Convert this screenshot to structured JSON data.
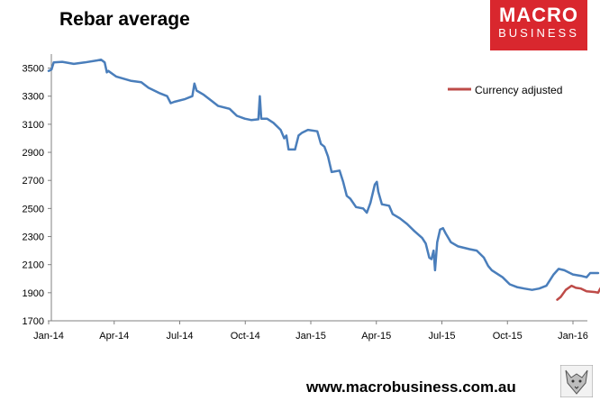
{
  "header": {
    "title": "Rebar average"
  },
  "logo": {
    "line1": "MACRO",
    "line2": "BUSINESS",
    "bg": "#d9272e"
  },
  "footer": {
    "url": "www.macrobusiness.com.au",
    "mascot_icon": "fox-logo-icon"
  },
  "colors": {
    "main": "#4a7ebb",
    "adjusted": "#be4b48",
    "axis": "#808080"
  },
  "chart_data": {
    "type": "line",
    "title": "Rebar average",
    "xlabel": "",
    "ylabel": "",
    "ylim": [
      1700,
      3600
    ],
    "yticks": [
      1700,
      1900,
      2100,
      2300,
      2500,
      2700,
      2900,
      3100,
      3300,
      3500
    ],
    "x_tick_labels": [
      "Jan-14",
      "Apr-14",
      "Jul-14",
      "Oct-14",
      "Jan-15",
      "Apr-15",
      "Jul-15",
      "Oct-15",
      "Jan-16"
    ],
    "grid": false,
    "legend": "top-right",
    "series": [
      {
        "name": "",
        "color": "#4a7ebb",
        "points": [
          [
            "2014-01-01",
            3480
          ],
          [
            "2014-01-05",
            3490
          ],
          [
            "2014-01-08",
            3540
          ],
          [
            "2014-01-20",
            3545
          ],
          [
            "2014-02-05",
            3530
          ],
          [
            "2014-02-20",
            3540
          ],
          [
            "2014-03-10",
            3555
          ],
          [
            "2014-03-15",
            3560
          ],
          [
            "2014-03-20",
            3540
          ],
          [
            "2014-03-23",
            3470
          ],
          [
            "2014-03-25",
            3480
          ],
          [
            "2014-04-05",
            3440
          ],
          [
            "2014-04-25",
            3410
          ],
          [
            "2014-05-10",
            3400
          ],
          [
            "2014-05-20",
            3360
          ],
          [
            "2014-06-05",
            3320
          ],
          [
            "2014-06-15",
            3300
          ],
          [
            "2014-06-20",
            3250
          ],
          [
            "2014-06-25",
            3260
          ],
          [
            "2014-07-10",
            3280
          ],
          [
            "2014-07-20",
            3300
          ],
          [
            "2014-07-23",
            3390
          ],
          [
            "2014-07-26",
            3340
          ],
          [
            "2014-08-05",
            3310
          ],
          [
            "2014-08-15",
            3270
          ],
          [
            "2014-08-25",
            3230
          ],
          [
            "2014-09-10",
            3210
          ],
          [
            "2014-09-20",
            3160
          ],
          [
            "2014-10-01",
            3140
          ],
          [
            "2014-10-10",
            3130
          ],
          [
            "2014-10-20",
            3135
          ],
          [
            "2014-10-22",
            3300
          ],
          [
            "2014-10-24",
            3140
          ],
          [
            "2014-11-01",
            3140
          ],
          [
            "2014-11-10",
            3110
          ],
          [
            "2014-11-20",
            3060
          ],
          [
            "2014-11-25",
            3000
          ],
          [
            "2014-11-28",
            3020
          ],
          [
            "2014-12-01",
            2920
          ],
          [
            "2014-12-10",
            2920
          ],
          [
            "2014-12-15",
            3020
          ],
          [
            "2014-12-20",
            3040
          ],
          [
            "2014-12-28",
            3060
          ],
          [
            "2015-01-10",
            3050
          ],
          [
            "2015-01-15",
            2960
          ],
          [
            "2015-01-20",
            2940
          ],
          [
            "2015-01-25",
            2870
          ],
          [
            "2015-01-30",
            2760
          ],
          [
            "2015-02-10",
            2770
          ],
          [
            "2015-02-15",
            2690
          ],
          [
            "2015-02-20",
            2590
          ],
          [
            "2015-02-25",
            2570
          ],
          [
            "2015-03-05",
            2510
          ],
          [
            "2015-03-15",
            2500
          ],
          [
            "2015-03-20",
            2470
          ],
          [
            "2015-03-25",
            2540
          ],
          [
            "2015-03-31",
            2670
          ],
          [
            "2015-04-03",
            2690
          ],
          [
            "2015-04-05",
            2620
          ],
          [
            "2015-04-10",
            2530
          ],
          [
            "2015-04-20",
            2520
          ],
          [
            "2015-04-25",
            2460
          ],
          [
            "2015-05-05",
            2430
          ],
          [
            "2015-05-15",
            2390
          ],
          [
            "2015-05-25",
            2340
          ],
          [
            "2015-06-05",
            2290
          ],
          [
            "2015-06-10",
            2250
          ],
          [
            "2015-06-15",
            2150
          ],
          [
            "2015-06-18",
            2140
          ],
          [
            "2015-06-21",
            2200
          ],
          [
            "2015-06-23",
            2060
          ],
          [
            "2015-06-26",
            2260
          ],
          [
            "2015-06-30",
            2350
          ],
          [
            "2015-07-04",
            2360
          ],
          [
            "2015-07-08",
            2320
          ],
          [
            "2015-07-15",
            2260
          ],
          [
            "2015-07-25",
            2230
          ],
          [
            "2015-08-10",
            2210
          ],
          [
            "2015-08-20",
            2200
          ],
          [
            "2015-08-30",
            2150
          ],
          [
            "2015-09-05",
            2090
          ],
          [
            "2015-09-10",
            2060
          ],
          [
            "2015-09-25",
            2010
          ],
          [
            "2015-10-05",
            1960
          ],
          [
            "2015-10-15",
            1940
          ],
          [
            "2015-10-25",
            1930
          ],
          [
            "2015-11-05",
            1920
          ],
          [
            "2015-11-15",
            1930
          ],
          [
            "2015-11-25",
            1950
          ],
          [
            "2015-12-05",
            2030
          ],
          [
            "2015-12-12",
            2070
          ],
          [
            "2015-12-20",
            2060
          ],
          [
            "2016-01-01",
            2030
          ],
          [
            "2016-01-12",
            2020
          ],
          [
            "2016-01-20",
            2010
          ],
          [
            "2016-01-25",
            2040
          ],
          [
            "2016-02-05",
            2040
          ]
        ]
      },
      {
        "name": "Currency adjusted",
        "color": "#be4b48",
        "points": [
          [
            "2015-12-10",
            1850
          ],
          [
            "2015-12-15",
            1870
          ],
          [
            "2015-12-22",
            1920
          ],
          [
            "2015-12-30",
            1950
          ],
          [
            "2016-01-05",
            1935
          ],
          [
            "2016-01-12",
            1930
          ],
          [
            "2016-01-20",
            1910
          ],
          [
            "2016-02-01",
            1905
          ],
          [
            "2016-02-05",
            1900
          ],
          [
            "2016-02-08",
            1930
          ]
        ]
      }
    ]
  }
}
